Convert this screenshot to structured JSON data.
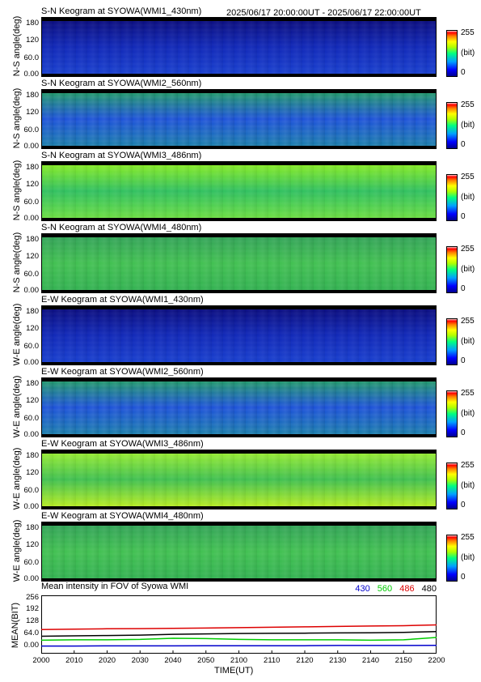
{
  "header": {
    "date_range": "2025/06/17 20:00:00UT - 2025/06/17 22:00:00UT"
  },
  "colorbar": {
    "max": "255",
    "unit": "(bit)",
    "min": "0"
  },
  "panels": [
    {
      "title": "S-N Keogram at SYOWA(WMI1_430nm)",
      "ylabel": "N-S angle(deg)",
      "yticks": [
        "180",
        "120",
        "60.0",
        "0.00"
      ],
      "palette": "dark-blue"
    },
    {
      "title": "S-N Keogram at SYOWA(WMI2_560nm)",
      "ylabel": "N-S angle(deg)",
      "yticks": [
        "180",
        "120",
        "60.0",
        "0.00"
      ],
      "palette": "blue-green"
    },
    {
      "title": "S-N Keogram at SYOWA(WMI3_486nm)",
      "ylabel": "N-S angle(deg)",
      "yticks": [
        "180",
        "120",
        "60.0",
        "0.00"
      ],
      "palette": "green"
    },
    {
      "title": "S-N Keogram at SYOWA(WMI4_480nm)",
      "ylabel": "N-S angle(deg)",
      "yticks": [
        "180",
        "120",
        "60.0",
        "0.00"
      ],
      "palette": "green2"
    },
    {
      "title": "E-W Keogram at SYOWA(WMI1_430nm)",
      "ylabel": "W-E angle(deg)",
      "yticks": [
        "180",
        "120",
        "60.0",
        "0.00"
      ],
      "palette": "dark-blue"
    },
    {
      "title": "E-W Keogram at SYOWA(WMI2_560nm)",
      "ylabel": "W-E angle(deg)",
      "yticks": [
        "180",
        "120",
        "60.0",
        "0.00"
      ],
      "palette": "blue-green"
    },
    {
      "title": "E-W Keogram at SYOWA(WMI3_486nm)",
      "ylabel": "W-E angle(deg)",
      "yticks": [
        "180",
        "120",
        "60.0",
        "0.00"
      ],
      "palette": "green-yellow"
    },
    {
      "title": "E-W Keogram at SYOWA(WMI4_480nm)",
      "ylabel": "W-E angle(deg)",
      "yticks": [
        "180",
        "120",
        "60.0",
        "0.00"
      ],
      "palette": "green2"
    }
  ],
  "mean_panel": {
    "title": "Mean intensity in FOV of Syowa WMI",
    "ylabel": "MEAN(BIT)",
    "yticks": [
      "256",
      "192",
      "128",
      "64.0",
      "0.00"
    ],
    "legend": [
      {
        "label": "430",
        "color": "#0000cc"
      },
      {
        "label": "560",
        "color": "#00cc00"
      },
      {
        "label": "486",
        "color": "#dd0000"
      },
      {
        "label": "480",
        "color": "#000000"
      }
    ]
  },
  "xaxis": {
    "label": "TIME(UT)",
    "ticks": [
      "2000",
      "2010",
      "2020",
      "2030",
      "2040",
      "2050",
      "2100",
      "2110",
      "2120",
      "2130",
      "2140",
      "2150",
      "2200"
    ]
  },
  "chart_data": {
    "type": "line",
    "title": "Mean intensity in FOV of Syowa WMI",
    "xlabel": "TIME(UT)",
    "ylabel": "MEAN(BIT)",
    "ylim": [
      0,
      256
    ],
    "x": [
      "2000",
      "2010",
      "2020",
      "2030",
      "2040",
      "2050",
      "2100",
      "2110",
      "2120",
      "2130",
      "2140",
      "2150",
      "2200"
    ],
    "series": [
      {
        "name": "430",
        "values": [
          18,
          18,
          19,
          19,
          19,
          20,
          20,
          20,
          20,
          21,
          21,
          21,
          22
        ]
      },
      {
        "name": "560",
        "values": [
          48,
          50,
          50,
          52,
          58,
          56,
          52,
          50,
          50,
          50,
          48,
          50,
          62
        ]
      },
      {
        "name": "486",
        "values": [
          102,
          104,
          106,
          107,
          108,
          110,
          112,
          114,
          116,
          118,
          120,
          122,
          126
        ]
      },
      {
        "name": "480",
        "values": [
          68,
          70,
          72,
          74,
          78,
          80,
          82,
          83,
          84,
          85,
          86,
          88,
          92
        ]
      }
    ]
  }
}
